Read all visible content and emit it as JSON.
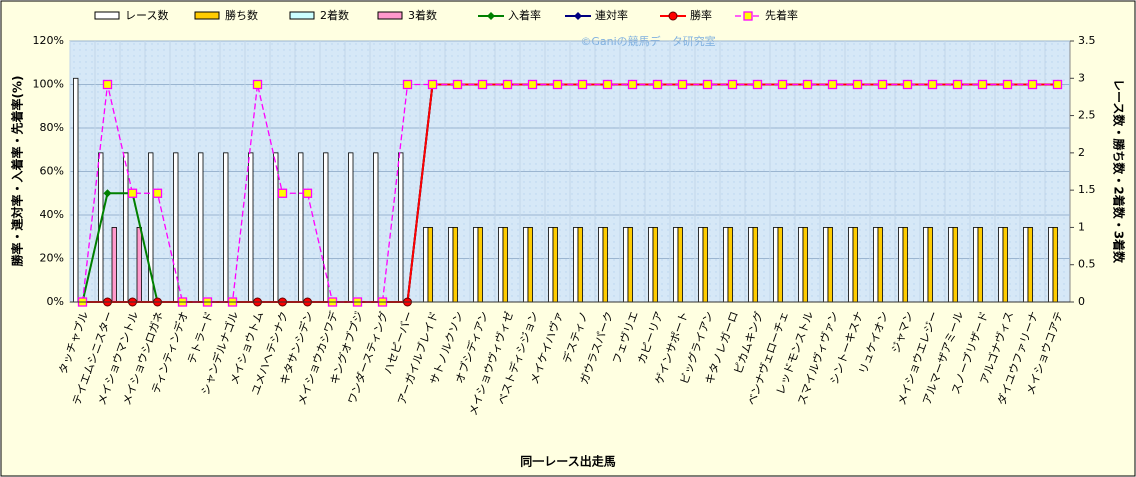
{
  "chart_data": {
    "type": "combo",
    "watermark": "©Ganiの競馬データ研究室",
    "x_label": "同一レース出走馬",
    "y_label": "勝率・連対率・入着率・先着率(%)",
    "y2_label": "レース数・勝ち数・2着数・3着数",
    "categories": [
      "タッチャブル",
      "テイエムシニスター",
      "メイショウマントル",
      "メイショウシロガネ",
      "ティンティンデオ",
      "テトラード",
      "シャンデルナゴル",
      "メイショウトム",
      "ユメハヘテシナク",
      "キタサンシデン",
      "メイショウカシワデ",
      "キングオブブジ",
      "ワンダースティング",
      "ハセピーバー",
      "アーガイルブレイド",
      "サトノルクソン",
      "オブシディアン",
      "メイショウヴィヴィゼ",
      "ベストディシジョン",
      "メイケイハヴァ",
      "デスティノ",
      "ガウラスパーク",
      "フェヴリエ",
      "カピーリア",
      "ゲインサポート",
      "ビッグライアン",
      "キタノレガーロ",
      "ピカムキング",
      "ベンナヴェローチェ",
      "レッドモンストル",
      "スマイルヴィヴァン",
      "シントーキスナ",
      "リュケイオン",
      "ジャマン",
      "メイショウエレジー",
      "アルマーザアミール",
      "スノーブリザード",
      "アルゴナヴィス",
      "ダイユウファリーナ",
      "メイショウコアテ"
    ],
    "ylim": [
      0,
      120
    ],
    "yticks": [
      {
        "value": 0,
        "label": "0%"
      },
      {
        "value": 20,
        "label": "20%"
      },
      {
        "value": 40,
        "label": "40%"
      },
      {
        "value": 60,
        "label": "60%"
      },
      {
        "value": 80,
        "label": "80%"
      },
      {
        "value": 100,
        "label": "100%"
      },
      {
        "value": 120,
        "label": "120%"
      }
    ],
    "y2lim": [
      0,
      3.5
    ],
    "y2ticks": [
      0,
      0.5,
      1,
      1.5,
      2,
      2.5,
      3,
      3.5
    ],
    "grid": true,
    "series": [
      {
        "name": "レース数",
        "type": "bar",
        "axis": "y2",
        "color": "#ffffff",
        "values": [
          3,
          2,
          2,
          2,
          2,
          2,
          2,
          2,
          2,
          2,
          2,
          2,
          2,
          2,
          1,
          1,
          1,
          1,
          1,
          1,
          1,
          1,
          1,
          1,
          1,
          1,
          1,
          1,
          1,
          1,
          1,
          1,
          1,
          1,
          1,
          1,
          1,
          1,
          1,
          1
        ]
      },
      {
        "name": "勝ち数",
        "type": "bar",
        "axis": "y2",
        "color": "#ffcc00",
        "values": [
          0,
          0,
          0,
          0,
          0,
          0,
          0,
          0,
          0,
          0,
          0,
          0,
          0,
          0,
          1,
          1,
          1,
          1,
          1,
          1,
          1,
          1,
          1,
          1,
          1,
          1,
          1,
          1,
          1,
          1,
          1,
          1,
          1,
          1,
          1,
          1,
          1,
          1,
          1,
          1
        ]
      },
      {
        "name": "2着数",
        "type": "bar",
        "axis": "y2",
        "color": "#ccffff",
        "values": [
          0,
          0,
          0,
          0,
          0,
          0,
          0,
          0,
          0,
          0,
          0,
          0,
          0,
          0,
          0,
          0,
          0,
          0,
          0,
          0,
          0,
          0,
          0,
          0,
          0,
          0,
          0,
          0,
          0,
          0,
          0,
          0,
          0,
          0,
          0,
          0,
          0,
          0,
          0,
          0
        ]
      },
      {
        "name": "3着数",
        "type": "bar",
        "axis": "y2",
        "color": "#ff99cc",
        "values": [
          0,
          1,
          1,
          0,
          0,
          0,
          0,
          0,
          0,
          0,
          0,
          0,
          0,
          0,
          0,
          0,
          0,
          0,
          0,
          0,
          0,
          0,
          0,
          0,
          0,
          0,
          0,
          0,
          0,
          0,
          0,
          0,
          0,
          0,
          0,
          0,
          0,
          0,
          0,
          0
        ]
      },
      {
        "name": "入着率",
        "type": "line",
        "color": "#008000",
        "marker": "diamond",
        "values": [
          0,
          50,
          50,
          0,
          0,
          0,
          0,
          0,
          0,
          0,
          0,
          0,
          0,
          0,
          100,
          100,
          100,
          100,
          100,
          100,
          100,
          100,
          100,
          100,
          100,
          100,
          100,
          100,
          100,
          100,
          100,
          100,
          100,
          100,
          100,
          100,
          100,
          100,
          100,
          100
        ]
      },
      {
        "name": "連対率",
        "type": "line",
        "color": "#000080",
        "marker": "diamond",
        "values": [
          0,
          0,
          0,
          0,
          0,
          0,
          0,
          0,
          0,
          0,
          0,
          0,
          0,
          0,
          100,
          100,
          100,
          100,
          100,
          100,
          100,
          100,
          100,
          100,
          100,
          100,
          100,
          100,
          100,
          100,
          100,
          100,
          100,
          100,
          100,
          100,
          100,
          100,
          100,
          100
        ]
      },
      {
        "name": "勝率",
        "type": "line",
        "color": "#ff0000",
        "marker": "circle",
        "values": [
          0,
          0,
          0,
          0,
          0,
          0,
          0,
          0,
          0,
          0,
          0,
          0,
          0,
          0,
          100,
          100,
          100,
          100,
          100,
          100,
          100,
          100,
          100,
          100,
          100,
          100,
          100,
          100,
          100,
          100,
          100,
          100,
          100,
          100,
          100,
          100,
          100,
          100,
          100,
          100
        ]
      },
      {
        "name": "先着率",
        "type": "line",
        "color": "#ff00ff",
        "marker": "square",
        "dashed": true,
        "values": [
          0,
          100,
          50,
          50,
          0,
          0,
          0,
          100,
          50,
          50,
          0,
          0,
          0,
          100,
          100,
          100,
          100,
          100,
          100,
          100,
          100,
          100,
          100,
          100,
          100,
          100,
          100,
          100,
          100,
          100,
          100,
          100,
          100,
          100,
          100,
          100,
          100,
          100,
          100,
          100
        ]
      }
    ]
  }
}
